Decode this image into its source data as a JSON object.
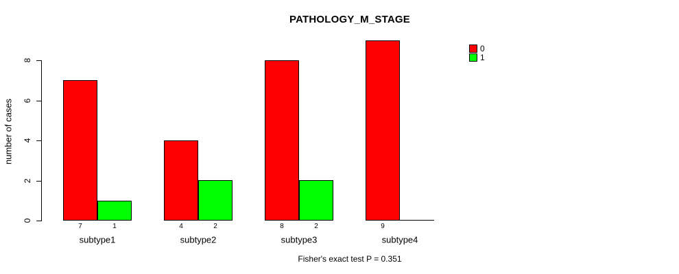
{
  "title": "PATHOLOGY_M_STAGE",
  "y_axis": {
    "label": "number of cases"
  },
  "footer": "Fisher's exact test P = 0.351",
  "legend": {
    "items": [
      {
        "label": "0",
        "color": "#ff0000"
      },
      {
        "label": "1",
        "color": "#00ff00"
      }
    ]
  },
  "chart_data": {
    "type": "bar",
    "title": "PATHOLOGY_M_STAGE",
    "xlabel": "",
    "ylabel": "number of cases",
    "categories": [
      "subtype1",
      "subtype2",
      "subtype3",
      "subtype4"
    ],
    "series": [
      {
        "name": "0",
        "color": "#ff0000",
        "values": [
          7,
          4,
          8,
          9
        ]
      },
      {
        "name": "1",
        "color": "#00ff00",
        "values": [
          1,
          2,
          2,
          0
        ]
      }
    ],
    "bar_value_labels_shown": true,
    "zero_value_labels_hidden": true,
    "yticks": [
      0,
      2,
      4,
      6,
      8
    ],
    "ylim": [
      0,
      9
    ],
    "grid": false,
    "legend_position": "outside-top-right",
    "annotation": "Fisher's exact test P = 0.351"
  }
}
